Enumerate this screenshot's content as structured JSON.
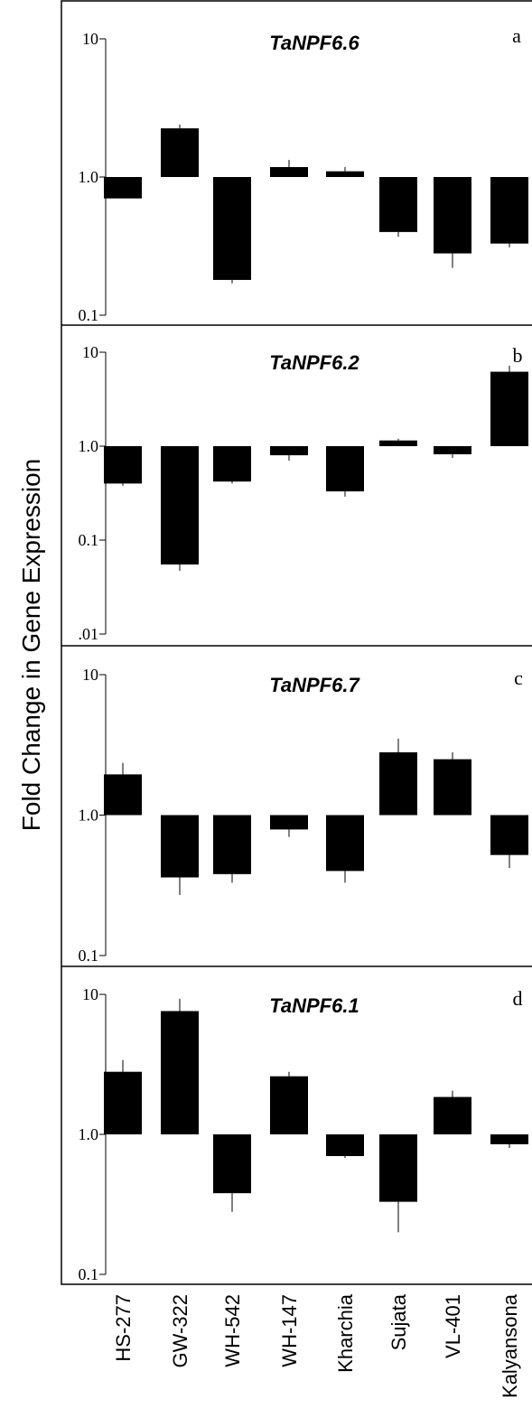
{
  "figure": {
    "ylabel": "Fold Change in Gene Expression"
  },
  "chart_data": [
    {
      "type": "bar",
      "letter": "a",
      "title": "TaNPF6.6",
      "scale": "log",
      "baseline": 1.0,
      "ylim": [
        0.1,
        10
      ],
      "yticks": [
        {
          "v": 10,
          "label": "10"
        },
        {
          "v": 1,
          "label": "1.0"
        },
        {
          "v": 0.1,
          "label": "0.1"
        }
      ],
      "categories": [
        "HS-277",
        "GW-322",
        "WH-542",
        "WH-147",
        "Kharchia",
        "Sujata",
        "VL-401",
        "Kalyansona"
      ],
      "values": [
        0.7,
        2.25,
        0.18,
        1.18,
        1.1,
        0.4,
        0.28,
        0.33
      ],
      "errors": [
        0.7,
        2.4,
        0.17,
        1.33,
        1.18,
        0.37,
        0.22,
        0.31
      ]
    },
    {
      "type": "bar",
      "letter": "b",
      "title": "TaNPF6.2",
      "scale": "log",
      "baseline": 1.0,
      "ylim": [
        0.01,
        10
      ],
      "yticks": [
        {
          "v": 10,
          "label": "10"
        },
        {
          "v": 1,
          "label": "1.0"
        },
        {
          "v": 0.1,
          "label": "0.1"
        },
        {
          "v": 0.01,
          "label": ".01"
        }
      ],
      "categories": [
        "HS-277",
        "GW-322",
        "WH-542",
        "WH-147",
        "Kharchia",
        "Sujata",
        "VL-401",
        "Kalyansona"
      ],
      "values": [
        0.4,
        0.055,
        0.42,
        0.8,
        0.33,
        1.15,
        0.82,
        6.2
      ],
      "errors": [
        0.38,
        0.047,
        0.4,
        0.7,
        0.29,
        1.2,
        0.75,
        7.2
      ]
    },
    {
      "type": "bar",
      "letter": "c",
      "title": "TaNPF6.7",
      "scale": "log",
      "baseline": 1.0,
      "ylim": [
        0.1,
        10
      ],
      "yticks": [
        {
          "v": 10,
          "label": "10"
        },
        {
          "v": 1,
          "label": "1.0"
        },
        {
          "v": 0.1,
          "label": "0.1"
        }
      ],
      "categories": [
        "HS-277",
        "GW-322",
        "WH-542",
        "WH-147",
        "Kharchia",
        "Sujata",
        "VL-401",
        "Kalyansona"
      ],
      "values": [
        1.95,
        0.36,
        0.38,
        0.79,
        0.4,
        2.8,
        2.5,
        0.52
      ],
      "errors": [
        2.35,
        0.27,
        0.33,
        0.7,
        0.33,
        3.5,
        2.8,
        0.42
      ]
    },
    {
      "type": "bar",
      "letter": "d",
      "title": "TaNPF6.1",
      "scale": "log",
      "baseline": 1.0,
      "ylim": [
        0.1,
        10
      ],
      "yticks": [
        {
          "v": 10,
          "label": "10"
        },
        {
          "v": 1,
          "label": "1.0"
        },
        {
          "v": 0.1,
          "label": "0.1"
        }
      ],
      "categories": [
        "HS-277",
        "GW-322",
        "WH-542",
        "WH-147",
        "Kharchia",
        "Sujata",
        "VL-401",
        "Kalyansona"
      ],
      "values": [
        2.8,
        7.6,
        0.38,
        2.6,
        0.7,
        0.33,
        1.85,
        0.85
      ],
      "errors": [
        3.4,
        9.3,
        0.28,
        2.8,
        0.68,
        0.2,
        2.05,
        0.8
      ]
    }
  ]
}
